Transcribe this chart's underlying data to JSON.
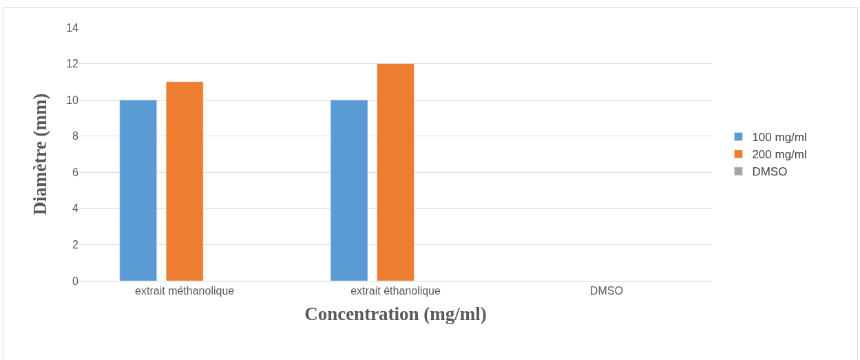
{
  "chart_data": {
    "type": "bar",
    "xlabel": "Concentration (mg/ml)",
    "ylabel": "Diamètre (mm)",
    "categories": [
      "extrait méthanolique",
      "extrait éthanolique",
      "DMSO"
    ],
    "series": [
      {
        "name": "100 mg/ml",
        "color": "#5b9bd5",
        "values": [
          10,
          10,
          null
        ]
      },
      {
        "name": "200 mg/ml",
        "color": "#ed7d31",
        "values": [
          11,
          12,
          null
        ]
      },
      {
        "name": "DMSO",
        "color": "#a5a5a5",
        "values": [
          null,
          null,
          null
        ]
      }
    ],
    "ylim": [
      0,
      14
    ],
    "yticks": [
      0,
      2,
      4,
      6,
      8,
      10,
      12,
      14
    ],
    "grid": "y",
    "legend": "right"
  }
}
